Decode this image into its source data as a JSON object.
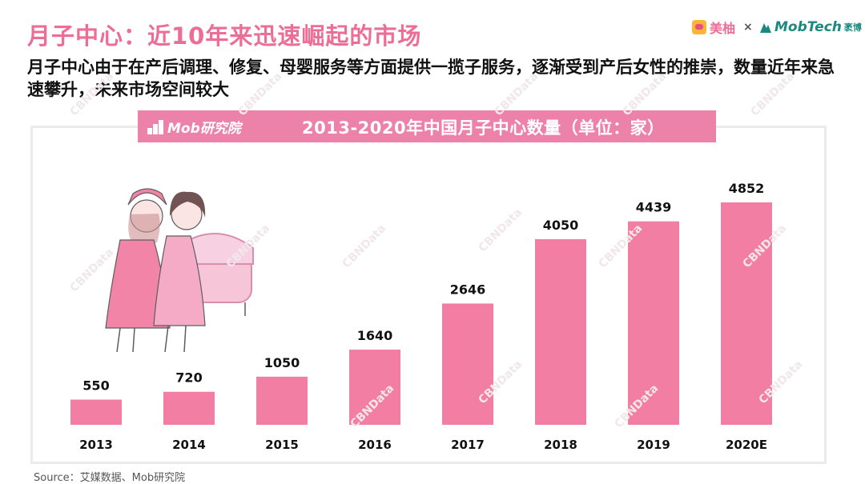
{
  "header": {
    "title": "月子中心：近10年来迅速崛起的市场",
    "subtitle": "月子中心由于在产后调理、修复、母婴服务等方面提供一揽子服务，逐渐受到产后女性的推崇，数量近年来急速攀升，未来市场空间较大"
  },
  "brands": {
    "meiyou": "美柚",
    "separator": "×",
    "mobtech": "MobTech",
    "mobtech_cn": "袤博"
  },
  "banner": {
    "logo": "Mob研究院"
  },
  "watermark": "CBNData",
  "chart_data": {
    "type": "bar",
    "title": "2013-2020年中国月子中心数量（单位：家）",
    "categories": [
      "2013",
      "2014",
      "2015",
      "2016",
      "2017",
      "2018",
      "2019",
      "2020E"
    ],
    "values": [
      550,
      720,
      1050,
      1640,
      2646,
      4050,
      4439,
      4852
    ],
    "bar_color": "#f27fa3",
    "grid": false,
    "ylim": [
      0,
      5200
    ]
  },
  "source": "Source：艾媒数据、Mob研究院",
  "colors": {
    "accent": "#ec6e97",
    "banner": "#ec82a7"
  }
}
